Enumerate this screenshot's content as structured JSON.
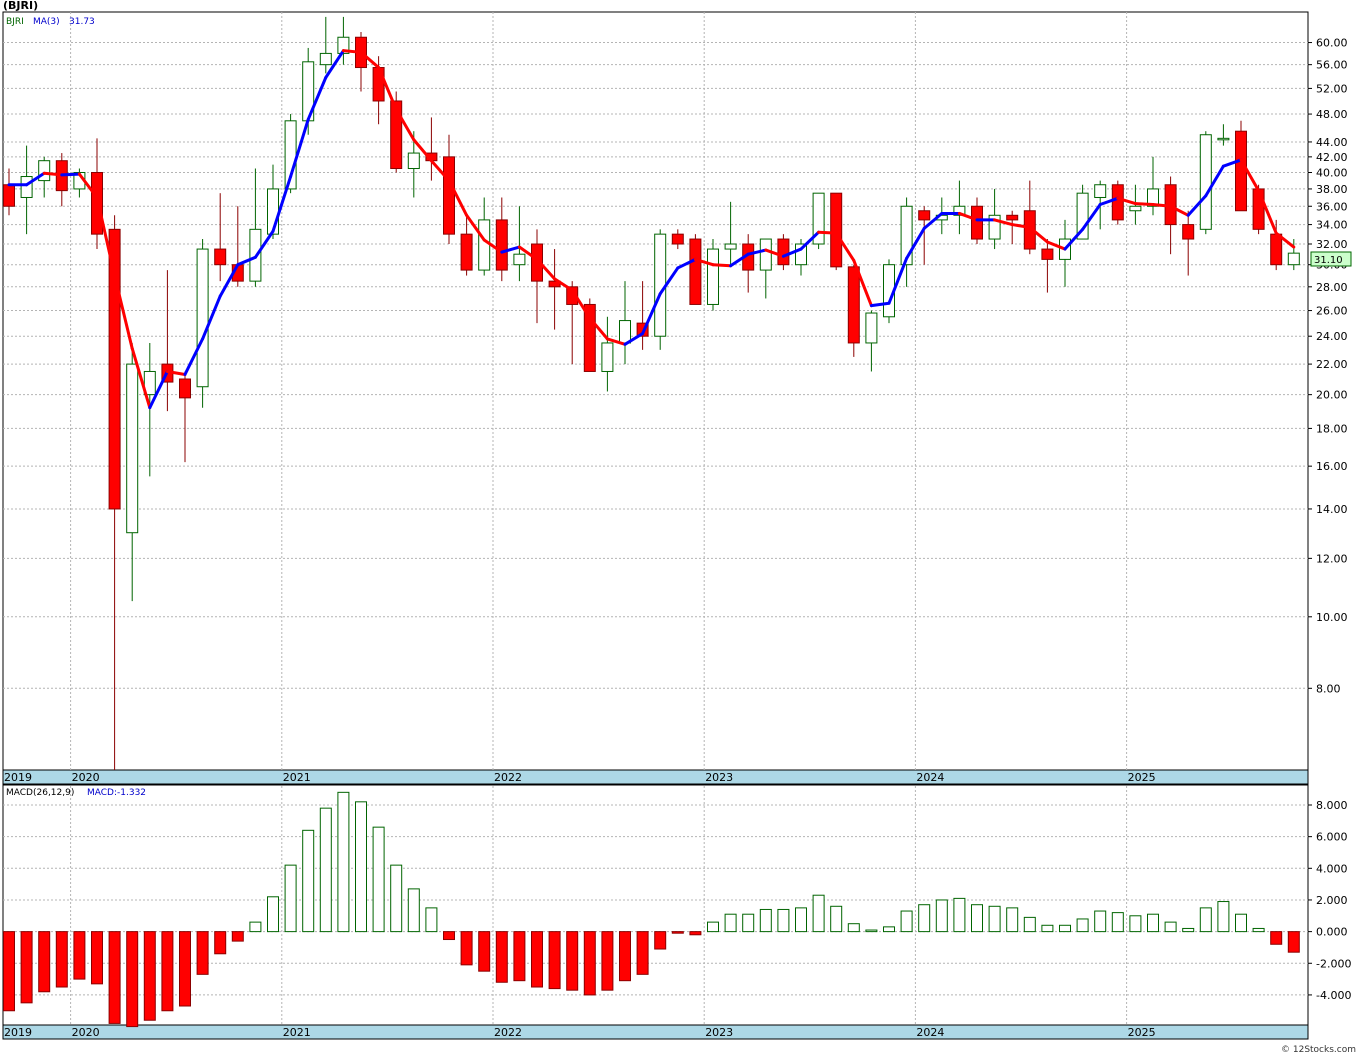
{
  "header": {
    "symbol_label": "(BJRI)",
    "price_legend_symbol": "BJRI",
    "ma_legend_label": "MA(3)",
    "ma_legend_value": "31.73",
    "macd_legend_label": "MACD(26,12,9)",
    "macd_legend_value": "MACD:-1.332",
    "last_price_label": "31.10",
    "watermark": "© 12Stocks.com"
  },
  "colors": {
    "up_candle_border": "#006400",
    "up_candle_fill": "#ffffff",
    "down_candle_fill": "#ff0000",
    "down_candle_border": "#8b0000",
    "ma_rising": "#0000ff",
    "ma_falling": "#ff0000",
    "axis_band": "#add8e6",
    "grid": "#b4b4b4"
  },
  "chart_data": [
    {
      "type": "candlestick",
      "interval": "monthly",
      "scale": "log",
      "ylim": [
        6.2,
        66
      ],
      "yticks": [
        "8.00",
        "10.00",
        "12.00",
        "14.00",
        "16.00",
        "18.00",
        "20.00",
        "22.00",
        "24.00",
        "26.00",
        "28.00",
        "30.00",
        "32.00",
        "34.00",
        "36.00",
        "38.00",
        "40.00",
        "42.00",
        "44.00",
        "48.00",
        "52.00",
        "56.00",
        "60.00"
      ],
      "ytick_values": [
        8,
        10,
        12,
        14,
        16,
        18,
        20,
        22,
        24,
        26,
        28,
        30,
        32,
        34,
        36,
        38,
        40,
        42,
        44,
        48,
        52,
        56,
        60
      ],
      "year_labels": [
        "2019",
        "2020",
        "2021",
        "2022",
        "2023",
        "2024",
        "2025"
      ],
      "year_first_index": [
        0,
        4,
        16,
        28,
        40,
        52,
        64
      ],
      "grid": true,
      "legend": "top-left",
      "series": [
        {
          "name": "BJRI",
          "ohlc": [
            [
              38.5,
              40.5,
              35.0,
              36.0
            ],
            [
              37.0,
              43.5,
              33.0,
              39.5
            ],
            [
              39.0,
              42.0,
              37.0,
              41.5
            ],
            [
              41.5,
              42.5,
              36.0,
              37.8
            ],
            [
              38.0,
              40.5,
              37.0,
              40.0
            ],
            [
              40.0,
              44.5,
              31.5,
              33.0
            ],
            [
              33.5,
              35.0,
              6.2,
              14.0
            ],
            [
              13.0,
              23.5,
              10.5,
              22.0
            ],
            [
              20.0,
              23.5,
              15.5,
              21.5
            ],
            [
              22.0,
              29.5,
              19.0,
              20.8
            ],
            [
              21.0,
              21.5,
              16.2,
              19.8
            ],
            [
              20.5,
              32.5,
              19.2,
              31.5
            ],
            [
              31.5,
              37.5,
              28.5,
              30.0
            ],
            [
              30.0,
              36.0,
              28.0,
              28.5
            ],
            [
              28.5,
              40.5,
              28.0,
              33.5
            ],
            [
              33.0,
              41.0,
              32.5,
              38.0
            ],
            [
              38.0,
              48.0,
              37.5,
              47.0
            ],
            [
              47.0,
              59.0,
              45.0,
              56.5
            ],
            [
              56.0,
              65.0,
              54.5,
              58.0
            ],
            [
              58.0,
              65.0,
              56.0,
              61.0
            ],
            [
              61.0,
              62.0,
              51.5,
              55.5
            ],
            [
              55.5,
              57.5,
              46.5,
              50.0
            ],
            [
              50.0,
              51.5,
              40.0,
              40.5
            ],
            [
              40.5,
              45.5,
              37.0,
              42.5
            ],
            [
              42.5,
              47.5,
              39.0,
              41.5
            ],
            [
              42.0,
              45.0,
              32.0,
              33.0
            ],
            [
              33.0,
              35.0,
              29.0,
              29.5
            ],
            [
              29.5,
              37.0,
              29.0,
              34.5
            ],
            [
              34.5,
              37.0,
              28.5,
              29.5
            ],
            [
              30.0,
              36.0,
              28.5,
              31.0
            ],
            [
              32.0,
              33.5,
              25.0,
              28.5
            ],
            [
              28.5,
              31.5,
              24.5,
              28.0
            ],
            [
              28.0,
              28.5,
              22.0,
              26.5
            ],
            [
              26.5,
              27.0,
              21.5,
              21.5
            ],
            [
              21.5,
              25.5,
              20.2,
              23.5
            ],
            [
              23.5,
              28.5,
              22.0,
              25.2
            ],
            [
              25.0,
              28.5,
              23.0,
              24.0
            ],
            [
              24.0,
              33.5,
              23.0,
              33.0
            ],
            [
              33.0,
              33.5,
              31.5,
              32.0
            ],
            [
              32.5,
              33.0,
              26.5,
              26.5
            ],
            [
              26.5,
              32.5,
              26.0,
              31.5
            ],
            [
              31.5,
              36.5,
              30.0,
              32.0
            ],
            [
              32.0,
              33.0,
              27.5,
              29.5
            ],
            [
              29.5,
              32.5,
              27.0,
              32.5
            ],
            [
              32.5,
              33.0,
              29.5,
              30.0
            ],
            [
              30.0,
              32.5,
              29.0,
              32.0
            ],
            [
              32.0,
              37.5,
              31.5,
              37.5
            ],
            [
              37.5,
              37.5,
              29.5,
              29.8
            ],
            [
              29.8,
              30.0,
              22.5,
              23.5
            ],
            [
              23.5,
              26.0,
              21.5,
              25.8
            ],
            [
              25.5,
              30.5,
              25.0,
              30.0
            ],
            [
              30.0,
              37.0,
              28.0,
              36.0
            ],
            [
              35.5,
              36.0,
              30.0,
              34.5
            ],
            [
              34.5,
              37.0,
              33.0,
              35.0
            ],
            [
              35.0,
              39.0,
              33.0,
              36.0
            ],
            [
              36.0,
              37.0,
              32.0,
              32.5
            ],
            [
              32.5,
              38.0,
              31.5,
              35.0
            ],
            [
              35.0,
              35.5,
              32.0,
              34.5
            ],
            [
              35.5,
              39.0,
              31.0,
              31.5
            ],
            [
              31.5,
              32.5,
              27.5,
              30.5
            ],
            [
              30.5,
              34.5,
              28.0,
              32.5
            ],
            [
              32.5,
              38.5,
              32.5,
              37.5
            ],
            [
              37.0,
              39.0,
              33.5,
              38.5
            ],
            [
              38.5,
              39.0,
              34.0,
              34.5
            ],
            [
              35.5,
              38.5,
              34.0,
              36.0
            ],
            [
              36.0,
              42.0,
              35.0,
              38.0
            ],
            [
              38.5,
              39.5,
              31.0,
              34.0
            ],
            [
              34.0,
              35.5,
              29.0,
              32.5
            ],
            [
              33.5,
              45.5,
              33.0,
              45.0
            ],
            [
              44.5,
              46.5,
              43.5,
              44.5
            ],
            [
              45.5,
              47.0,
              35.5,
              35.5
            ],
            [
              38.0,
              38.5,
              33.0,
              33.5
            ],
            [
              33.0,
              34.5,
              29.5,
              30.0
            ],
            [
              30.0,
              32.5,
              29.5,
              31.1
            ]
          ],
          "ma3": [
            38.5,
            38.5,
            39.9,
            39.7,
            39.8,
            37.0,
            29.0,
            23.1,
            19.2,
            21.5,
            21.3,
            23.8,
            27.2,
            30.0,
            30.7,
            33.3,
            39.5,
            47.2,
            53.8,
            58.5,
            58.2,
            55.5,
            48.7,
            44.3,
            41.5,
            39.0,
            35.0,
            32.4,
            31.2,
            31.7,
            30.5,
            28.7,
            27.7,
            25.4,
            23.8,
            23.4,
            24.2,
            27.4,
            29.7,
            30.5,
            30.0,
            29.9,
            31.0,
            31.4,
            30.8,
            31.5,
            33.2,
            33.1,
            30.4,
            26.4,
            26.6,
            30.6,
            33.6,
            35.2,
            35.2,
            34.5,
            34.5,
            34.0,
            33.7,
            32.2,
            31.5,
            33.5,
            36.2,
            36.9,
            36.3,
            36.2,
            36.0,
            35.0,
            37.2,
            40.8,
            41.6,
            37.8,
            33.1,
            31.7
          ]
        }
      ]
    },
    {
      "type": "bar",
      "name": "MACD(26,12,9)",
      "ylim": [
        -5.9,
        9.2
      ],
      "yticks": [
        "-4.000",
        "-2.000",
        "0.000",
        "2.000",
        "4.000",
        "6.000",
        "8.000"
      ],
      "ytick_values": [
        -4,
        -2,
        0,
        2,
        4,
        6,
        8
      ],
      "values": [
        -5.0,
        -4.5,
        -3.8,
        -3.5,
        -3.0,
        -3.3,
        -5.8,
        -6.0,
        -5.6,
        -5.0,
        -4.7,
        -2.7,
        -1.4,
        -0.6,
        0.6,
        2.2,
        4.2,
        6.4,
        7.8,
        8.8,
        8.2,
        6.6,
        4.2,
        2.7,
        1.5,
        -0.5,
        -2.1,
        -2.5,
        -3.2,
        -3.1,
        -3.5,
        -3.6,
        -3.7,
        -4.0,
        -3.7,
        -3.1,
        -2.7,
        -1.1,
        -0.1,
        -0.2,
        0.6,
        1.1,
        1.1,
        1.4,
        1.4,
        1.5,
        2.3,
        1.6,
        0.5,
        0.1,
        0.3,
        1.3,
        1.7,
        2.0,
        2.1,
        1.7,
        1.6,
        1.5,
        0.9,
        0.4,
        0.4,
        0.8,
        1.3,
        1.2,
        1.0,
        1.1,
        0.6,
        0.2,
        1.5,
        1.9,
        1.1,
        0.2,
        -0.8,
        -1.3
      ]
    }
  ]
}
